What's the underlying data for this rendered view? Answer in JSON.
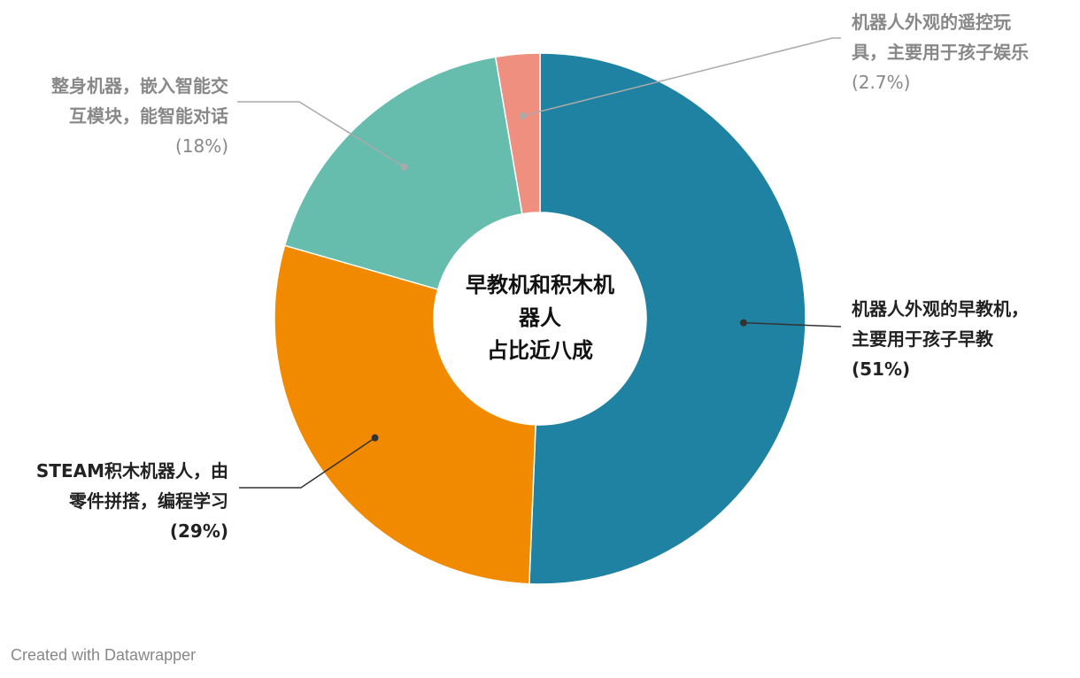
{
  "chart_data": {
    "type": "pie",
    "style": "donut",
    "center_title_lines": [
      "早教机和积木机",
      "器人",
      "占比近八成"
    ],
    "slices": [
      {
        "label_lines": [
          "机器人外观的早教机，",
          "主要用于孩子早教"
        ],
        "value_text": "(51%)",
        "value": 51,
        "color": "#1f82a3",
        "emphasis": true
      },
      {
        "label_lines": [
          "STEAM积木机器人，由",
          "零件拼搭，编程学习"
        ],
        "value_text": "(29%)",
        "value": 29,
        "color": "#f28a00",
        "emphasis": true
      },
      {
        "label_lines": [
          "整身机器，嵌入智能交",
          "互模块，能智能对话"
        ],
        "value_text": "(18%)",
        "value": 18,
        "color": "#66bcad",
        "emphasis": false
      },
      {
        "label_lines": [
          "机器人外观的遥控玩",
          "具，主要用于孩子娱乐"
        ],
        "value_text": "(2.7%)",
        "value": 2.7,
        "color": "#ee8f80",
        "emphasis": false
      }
    ]
  },
  "footer": {
    "credit": "Created with Datawrapper"
  }
}
